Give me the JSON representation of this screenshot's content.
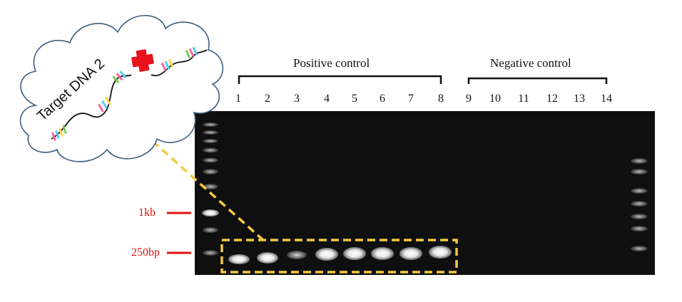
{
  "cloud": {
    "label": "Target DNA 2",
    "cross_color": "#e8121b"
  },
  "groups": {
    "positive": "Positive control",
    "negative": "Negative control"
  },
  "lanes": [
    "1",
    "2",
    "3",
    "4",
    "5",
    "6",
    "7",
    "8",
    "9",
    "10",
    "11",
    "12",
    "13",
    "14"
  ],
  "markers": [
    {
      "label": "1kb",
      "color": "#e01010"
    },
    {
      "label": "250bp",
      "color": "#e01010"
    }
  ],
  "highlight_color": "#f5c842",
  "gel_background": "#0d0d0d"
}
